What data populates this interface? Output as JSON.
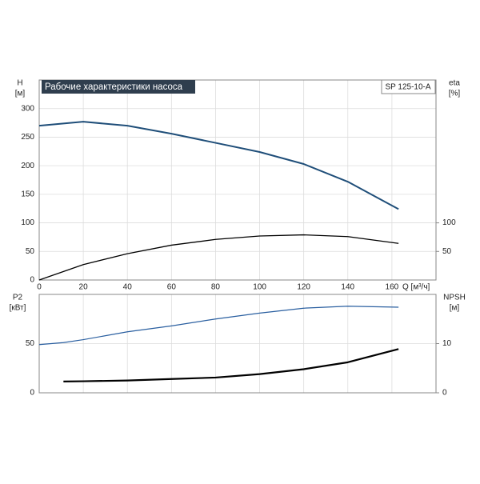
{
  "chart_data": [
    {
      "type": "line",
      "title": "Рабочие характеристики насоса",
      "subtitle": "SP 125-10-A",
      "ylabel": "H",
      "yunit": "[м]",
      "y2label": "eta",
      "y2unit": "[%]",
      "xlabel": "Q [м³/ч]",
      "x": [
        0,
        20,
        40,
        60,
        80,
        100,
        120,
        140,
        163
      ],
      "series": [
        {
          "name": "H",
          "color": "#1f4e79",
          "width": 2,
          "values": [
            270,
            277,
            270,
            256,
            240,
            224,
            203,
            172,
            124
          ]
        },
        {
          "name": "eta",
          "color": "#000000",
          "width": 1.3,
          "axis": "y2",
          "values": [
            0,
            27,
            46,
            61,
            71,
            77,
            79,
            76,
            64
          ]
        }
      ],
      "xlim": [
        0,
        180
      ],
      "xticks": [
        0,
        20,
        40,
        60,
        80,
        100,
        120,
        140,
        160
      ],
      "ylim": [
        0,
        350
      ],
      "yticks": [
        0,
        50,
        100,
        150,
        200,
        250,
        300
      ],
      "y2lim": [
        0,
        350
      ],
      "y2ticks": [
        50,
        100
      ],
      "grid": true
    },
    {
      "type": "line",
      "ylabel": "P2",
      "yunit": "[кВт]",
      "y2label": "NPSH",
      "y2unit": "[м]",
      "x": [
        0,
        11,
        20,
        40,
        60,
        80,
        100,
        120,
        140,
        163
      ],
      "series": [
        {
          "name": "P2",
          "color": "#2a5fa0",
          "width": 1.2,
          "values": [
            49,
            51,
            54,
            62,
            68,
            75,
            81,
            86,
            88,
            87
          ]
        },
        {
          "name": "NPSH",
          "color": "#000000",
          "width": 2.2,
          "axis": "y2",
          "values": [
            null,
            2.3,
            2.35,
            2.5,
            2.8,
            3.1,
            3.8,
            4.8,
            6.2,
            8.9
          ]
        }
      ],
      "xlim": [
        0,
        180
      ],
      "ylim": [
        0,
        100
      ],
      "yticks": [
        0,
        50
      ],
      "y2lim": [
        0,
        20
      ],
      "y2ticks": [
        0,
        10
      ],
      "grid": true
    }
  ]
}
